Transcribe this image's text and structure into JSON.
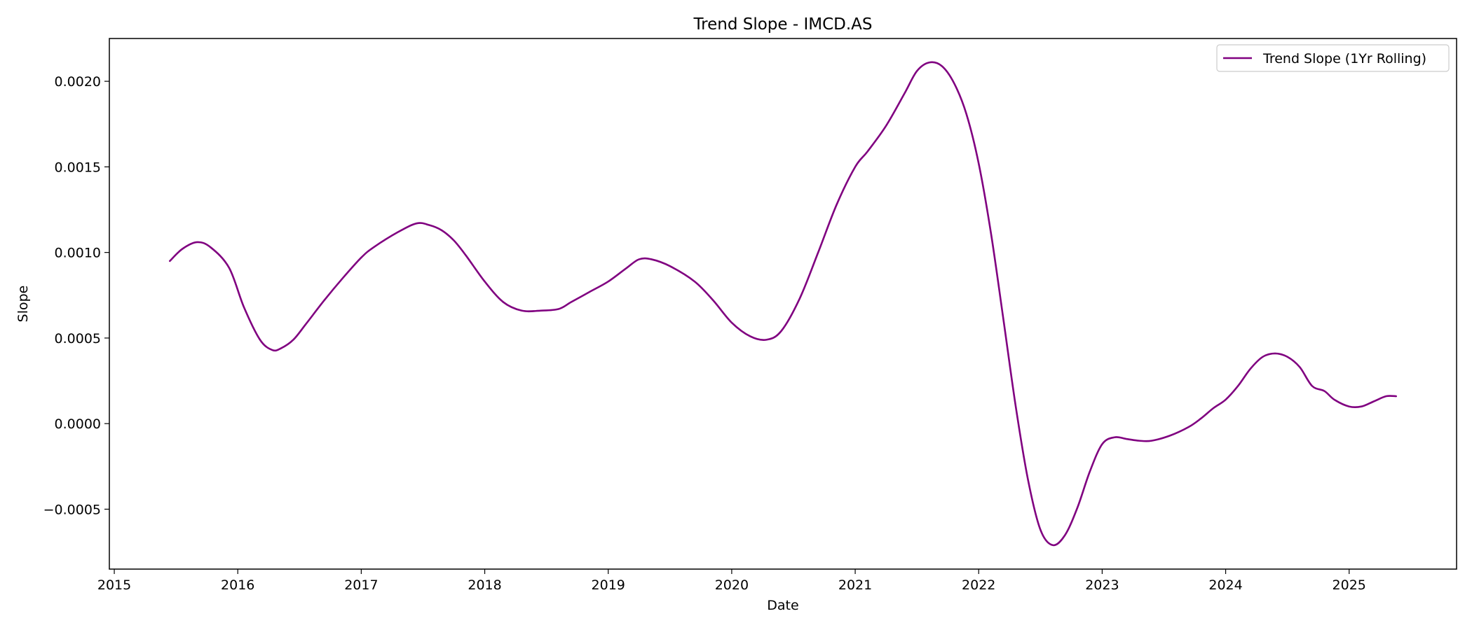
{
  "chart_data": {
    "type": "line",
    "title": "Trend Slope - IMCD.AS",
    "xlabel": "Date",
    "ylabel": "Slope",
    "xlim": [
      2014.96,
      2025.87
    ],
    "ylim": [
      -0.00085,
      0.00225
    ],
    "xticks": [
      2015,
      2016,
      2017,
      2018,
      2019,
      2020,
      2021,
      2022,
      2023,
      2024,
      2025
    ],
    "xtick_labels": [
      "2015",
      "2016",
      "2017",
      "2018",
      "2019",
      "2020",
      "2021",
      "2022",
      "2023",
      "2024",
      "2025"
    ],
    "yticks": [
      -0.0005,
      0.0,
      0.0005,
      0.001,
      0.0015,
      0.002
    ],
    "ytick_labels": [
      "−0.0005",
      "0.0000",
      "0.0005",
      "0.0010",
      "0.0015",
      "0.0020"
    ],
    "grid": false,
    "legend": {
      "position": "top-right"
    },
    "colors": {
      "line": "#800080"
    },
    "series": [
      {
        "name": "Trend Slope (1Yr Rolling)",
        "x": [
          2015.45,
          2015.55,
          2015.67,
          2015.78,
          2015.93,
          2016.05,
          2016.18,
          2016.28,
          2016.35,
          2016.45,
          2016.55,
          2016.7,
          2016.85,
          2017.0,
          2017.1,
          2017.3,
          2017.45,
          2017.55,
          2017.65,
          2017.75,
          2017.85,
          2018.0,
          2018.15,
          2018.3,
          2018.45,
          2018.6,
          2018.7,
          2018.85,
          2019.0,
          2019.15,
          2019.25,
          2019.35,
          2019.5,
          2019.7,
          2019.85,
          2020.0,
          2020.15,
          2020.28,
          2020.4,
          2020.55,
          2020.7,
          2020.85,
          2021.0,
          2021.1,
          2021.25,
          2021.4,
          2021.5,
          2021.6,
          2021.7,
          2021.8,
          2021.9,
          2022.0,
          2022.1,
          2022.2,
          2022.3,
          2022.4,
          2022.5,
          2022.6,
          2022.7,
          2022.8,
          2022.9,
          2023.0,
          2023.1,
          2023.2,
          2023.3,
          2023.4,
          2023.55,
          2023.7,
          2023.8,
          2023.9,
          2024.0,
          2024.1,
          2024.2,
          2024.3,
          2024.4,
          2024.5,
          2024.6,
          2024.7,
          2024.8,
          2024.88,
          2025.0,
          2025.1,
          2025.2,
          2025.3,
          2025.38
        ],
        "y": [
          0.00095,
          0.00102,
          0.00106,
          0.00103,
          0.00091,
          0.00068,
          0.00049,
          0.00043,
          0.00044,
          0.00049,
          0.00058,
          0.00072,
          0.00085,
          0.00097,
          0.00103,
          0.00112,
          0.00117,
          0.00116,
          0.00113,
          0.00107,
          0.00098,
          0.00083,
          0.00071,
          0.00066,
          0.00066,
          0.00067,
          0.00071,
          0.00077,
          0.00083,
          0.00091,
          0.00096,
          0.00096,
          0.00092,
          0.00083,
          0.00072,
          0.00059,
          0.00051,
          0.00049,
          0.00054,
          0.00073,
          0.001,
          0.00128,
          0.0015,
          0.00159,
          0.00174,
          0.00193,
          0.00206,
          0.00211,
          0.00209,
          0.00199,
          0.00181,
          0.00152,
          0.00111,
          0.00061,
          0.0001,
          -0.00033,
          -0.00062,
          -0.00071,
          -0.00065,
          -0.00049,
          -0.00028,
          -0.00012,
          -8e-05,
          -9e-05,
          -0.0001,
          -0.0001,
          -7e-05,
          -2e-05,
          3e-05,
          9e-05,
          0.00014,
          0.00022,
          0.00032,
          0.00039,
          0.00041,
          0.00039,
          0.00033,
          0.00022,
          0.00019,
          0.00014,
          0.0001,
          0.0001,
          0.00013,
          0.00016,
          0.00016
        ]
      }
    ]
  }
}
